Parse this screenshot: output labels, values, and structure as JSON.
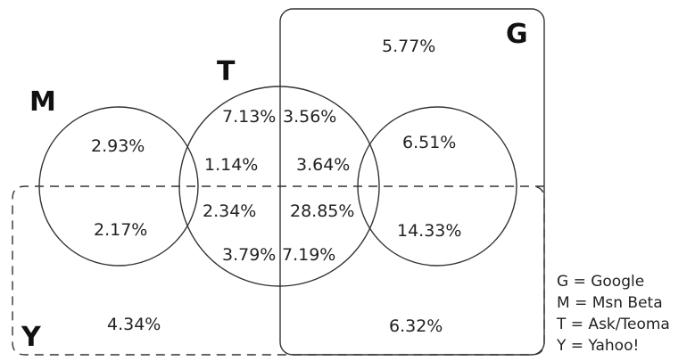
{
  "sets": {
    "M": "M",
    "T": "T",
    "G": "G",
    "Y": "Y"
  },
  "regions": {
    "g_only_top": "5.77%",
    "m_only_top": "2.93%",
    "t_m_top": "7.13%",
    "t_g_top": "3.56%",
    "t_m_mid": "1.14%",
    "t_g_mid": "3.64%",
    "g_only_mid": "6.51%",
    "m_y": "2.17%",
    "t_m_y": "2.34%",
    "t_g_y": "28.85%",
    "g_y": "14.33%",
    "t_m_y_bottom": "3.79%",
    "t_g_y_bottom": "7.19%",
    "y_only": "4.34%",
    "g_y_bottom": "6.32%"
  },
  "legend": [
    "G = Google",
    "M = Msn Beta",
    "T = Ask/Teoma",
    "Y = Yahoo!"
  ]
}
